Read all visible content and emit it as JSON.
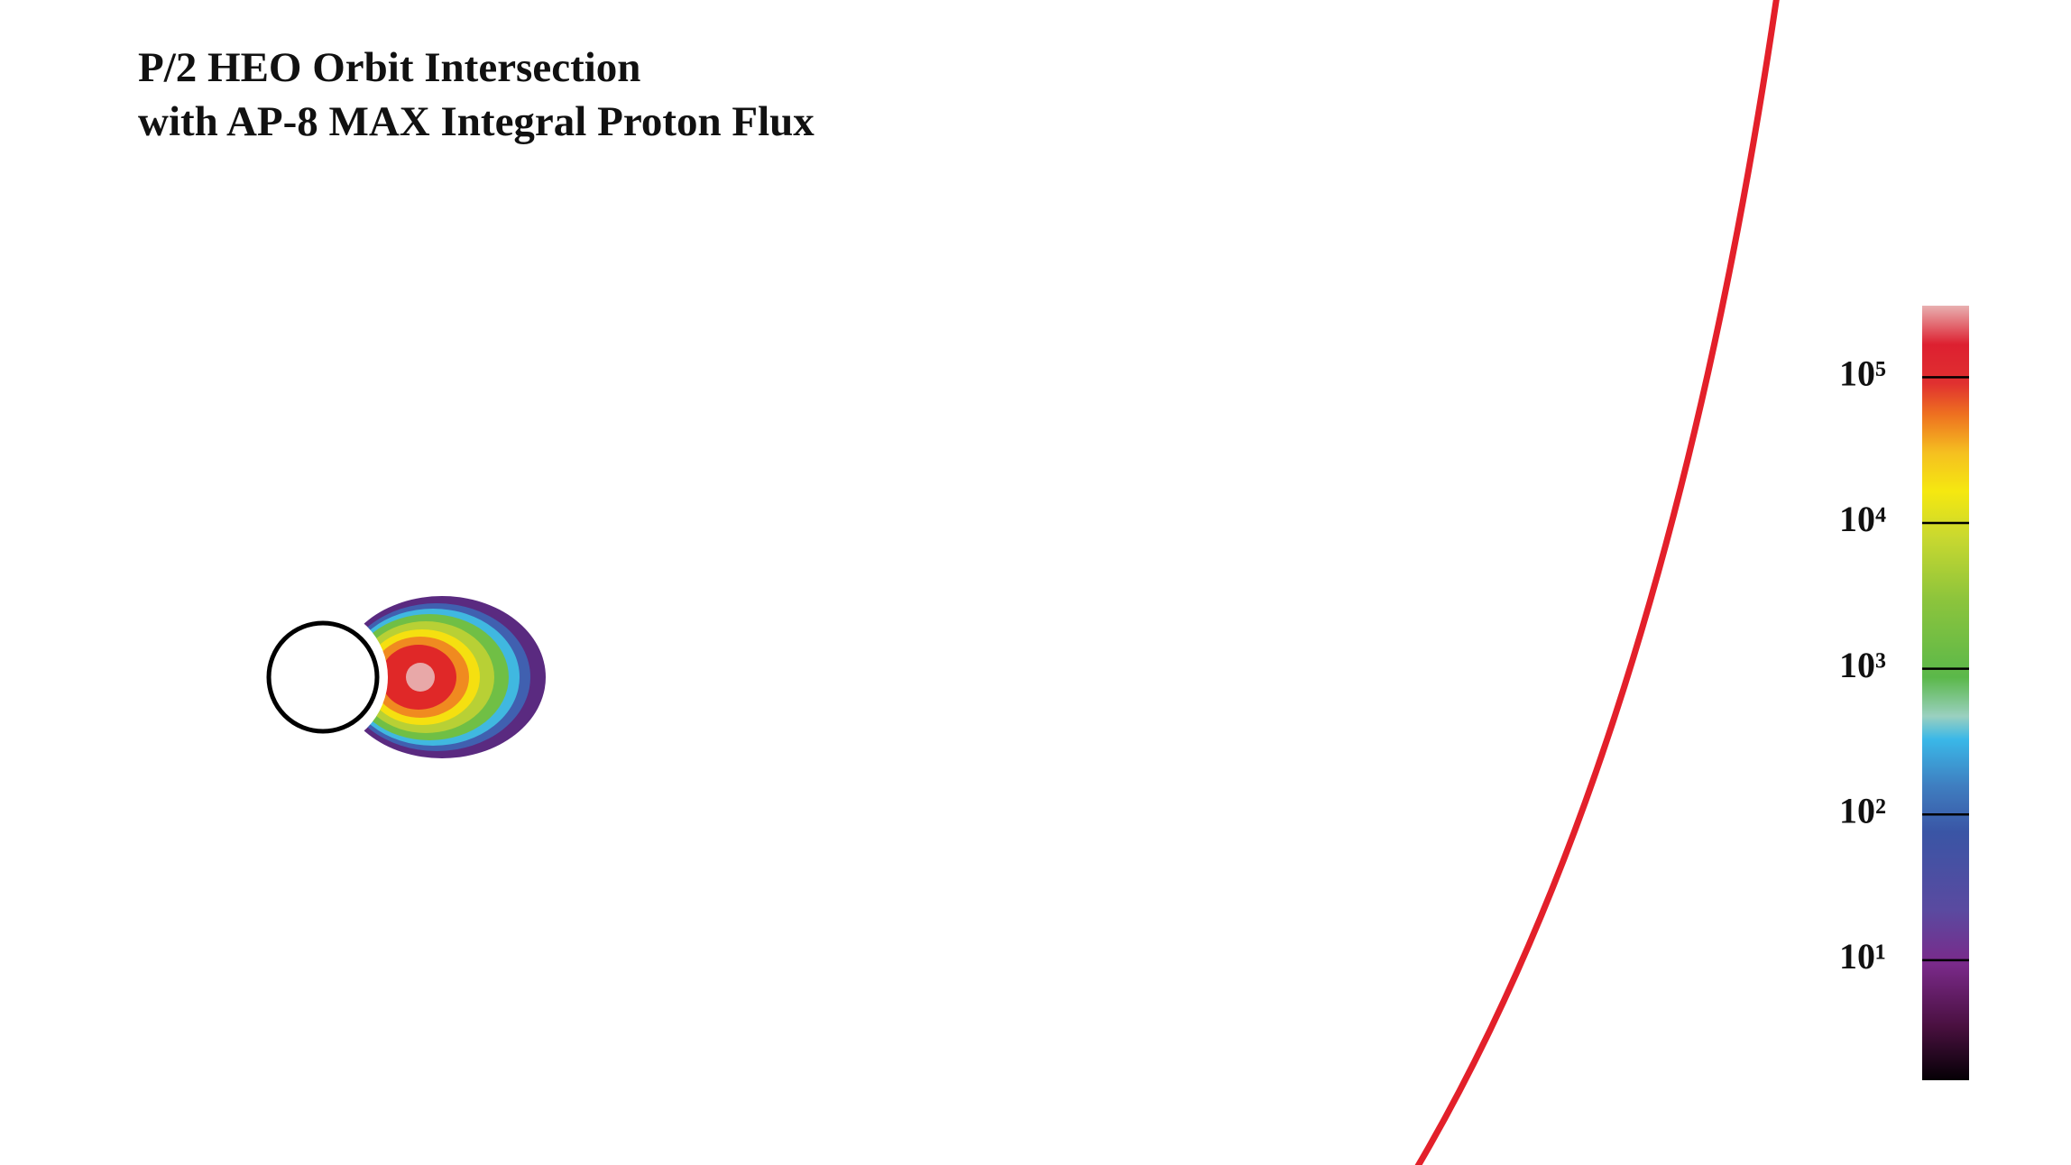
{
  "title": [
    "P/2 HEO Orbit Intersection",
    "with AP-8 MAX Integral Proton Flux"
  ],
  "colorbar": {
    "log": true,
    "range": [
      1.5,
      310000
    ],
    "ticks": [
      {
        "value": 100000,
        "label": "10⁵"
      },
      {
        "value": 10000,
        "label": "10⁴"
      },
      {
        "value": 1000,
        "label": "10³"
      },
      {
        "value": 100,
        "label": "10²"
      },
      {
        "value": 10,
        "label": "10¹"
      }
    ]
  }
}
